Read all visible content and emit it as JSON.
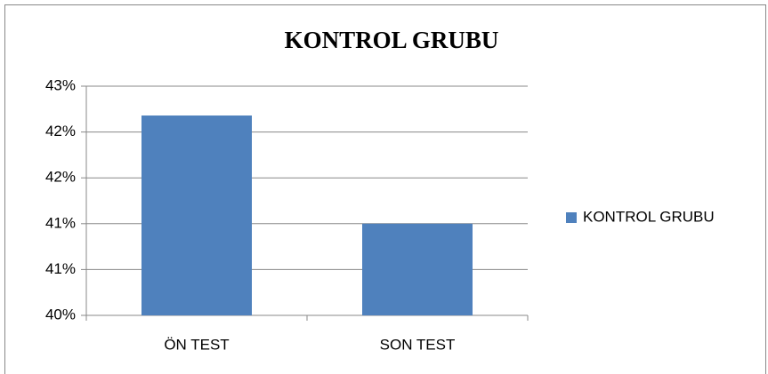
{
  "chart_data": {
    "type": "bar",
    "title": "KONTROL GRUBU",
    "categories": [
      "ÖN TEST",
      "SON TEST"
    ],
    "series": [
      {
        "name": "KONTROL GRUBU",
        "color": "#4f81bd",
        "values": [
          42.18,
          41.0
        ]
      }
    ],
    "ylim": [
      40,
      42.5
    ],
    "yticks": [
      {
        "value": 40,
        "label": "40%"
      },
      {
        "value": 40.5,
        "label": "41%"
      },
      {
        "value": 41,
        "label": "41%"
      },
      {
        "value": 41.5,
        "label": "42%"
      },
      {
        "value": 42,
        "label": "42%"
      },
      {
        "value": 42.5,
        "label": "43%"
      }
    ],
    "grid": true,
    "legend": "right"
  }
}
